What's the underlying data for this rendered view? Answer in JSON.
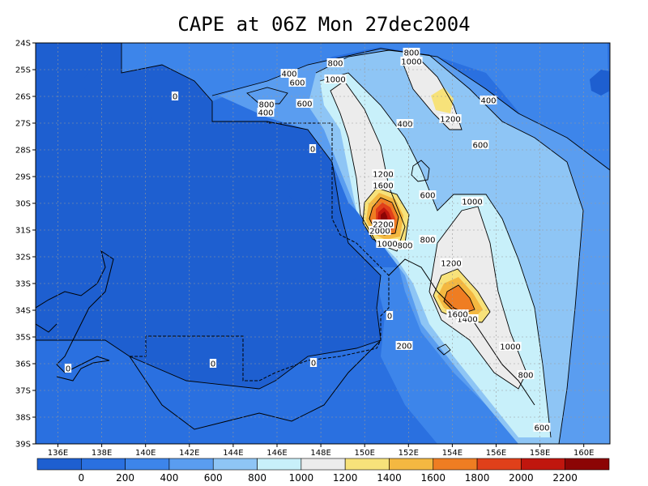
{
  "title": "CAPE at 06Z Mon 27dec2004",
  "map": {
    "lat_labels": [
      "24S",
      "25S",
      "26S",
      "27S",
      "28S",
      "29S",
      "30S",
      "31S",
      "32S",
      "33S",
      "34S",
      "35S",
      "36S",
      "37S",
      "38S",
      "39S"
    ],
    "lon_labels": [
      "136E",
      "138E",
      "140E",
      "142E",
      "144E",
      "146E",
      "148E",
      "150E",
      "152E",
      "154E",
      "156E",
      "158E",
      "160E"
    ]
  },
  "colorbar": {
    "labels": [
      "0",
      "200",
      "400",
      "600",
      "800",
      "1000",
      "1200",
      "1400",
      "1600",
      "1800",
      "2000",
      "2200"
    ],
    "colors": [
      "#1e5fd0",
      "#2a70e0",
      "#3d85ea",
      "#5a9df0",
      "#8ec5f5",
      "#c8f0fa",
      "#ececec",
      "#f7e27a",
      "#f4b841",
      "#ef7d22",
      "#e0401a",
      "#c0160e",
      "#8c0505"
    ]
  },
  "contour_labels": [
    {
      "text": "0"
    },
    {
      "text": "0"
    },
    {
      "text": "0"
    },
    {
      "text": "0"
    },
    {
      "text": "0"
    },
    {
      "text": "0"
    },
    {
      "text": "200"
    },
    {
      "text": "400"
    },
    {
      "text": "400"
    },
    {
      "text": "400"
    },
    {
      "text": "400"
    },
    {
      "text": "600"
    },
    {
      "text": "600"
    },
    {
      "text": "600"
    },
    {
      "text": "600"
    },
    {
      "text": "600"
    },
    {
      "text": "800"
    },
    {
      "text": "800"
    },
    {
      "text": "800"
    },
    {
      "text": "800"
    },
    {
      "text": "800"
    },
    {
      "text": "800"
    },
    {
      "text": "1000"
    },
    {
      "text": "1000"
    },
    {
      "text": "1000"
    },
    {
      "text": "1000"
    },
    {
      "text": "1000"
    },
    {
      "text": "1200"
    },
    {
      "text": "1200"
    },
    {
      "text": "1200"
    },
    {
      "text": "1400"
    },
    {
      "text": "1600"
    },
    {
      "text": "1600"
    },
    {
      "text": "2000"
    },
    {
      "text": "2200"
    }
  ]
}
